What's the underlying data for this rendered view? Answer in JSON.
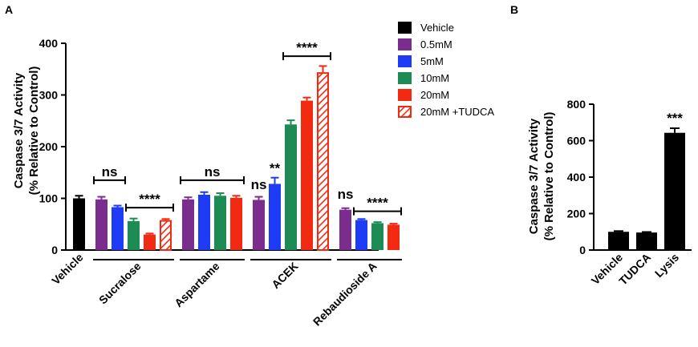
{
  "colors": {
    "Vehicle": "#000000",
    "0.5mM": "#7B2D8E",
    "5mM": "#1E3CF5",
    "10mM": "#1C8C54",
    "20mM": "#F22A12",
    "20mM +TUDCA": "#F22A12",
    "axis": "#000000"
  },
  "chart_data": [
    {
      "panel": "A",
      "type": "bar",
      "ylabel_line1": "Caspase 3/7 Activity",
      "ylabel_line2": "(% Relative to Control)",
      "ylim": [
        0,
        400
      ],
      "yticks": [
        "0",
        "100",
        "200",
        "300",
        "400"
      ],
      "legend": {
        "placement": "top-right",
        "entries": [
          {
            "label": "Vehicle",
            "color_key": "Vehicle",
            "hatched": false
          },
          {
            "label": "0.5mM",
            "color_key": "0.5mM",
            "hatched": false
          },
          {
            "label": "5mM",
            "color_key": "5mM",
            "hatched": false
          },
          {
            "label": "10mM",
            "color_key": "10mM",
            "hatched": false
          },
          {
            "label": "20mM",
            "color_key": "20mM",
            "hatched": false
          },
          {
            "label": "20mM +TUDCA",
            "color_key": "20mM +TUDCA",
            "hatched": true
          }
        ]
      },
      "groups": [
        {
          "label": "Vehicle",
          "bars": [
            {
              "series": "Vehicle",
              "value": 100,
              "error": 5
            }
          ]
        },
        {
          "label": "Sucralose",
          "bars": [
            {
              "series": "0.5mM",
              "value": 98,
              "error": 5
            },
            {
              "series": "5mM",
              "value": 83,
              "error": 3
            },
            {
              "series": "10mM",
              "value": 56,
              "error": 5
            },
            {
              "series": "20mM",
              "value": 30,
              "error": 2
            },
            {
              "series": "20mM +TUDCA",
              "value": 58,
              "error": 2
            }
          ]
        },
        {
          "label": "Aspartame",
          "bars": [
            {
              "series": "0.5mM",
              "value": 98,
              "error": 4
            },
            {
              "series": "5mM",
              "value": 107,
              "error": 5
            },
            {
              "series": "10mM",
              "value": 105,
              "error": 5
            },
            {
              "series": "20mM",
              "value": 101,
              "error": 4
            }
          ]
        },
        {
          "label": "ACEK",
          "bars": [
            {
              "series": "0.5mM",
              "value": 97,
              "error": 6
            },
            {
              "series": "5mM",
              "value": 128,
              "error": 12
            },
            {
              "series": "10mM",
              "value": 243,
              "error": 8
            },
            {
              "series": "20mM",
              "value": 289,
              "error": 6
            },
            {
              "series": "20mM +TUDCA",
              "value": 344,
              "error": 12
            }
          ]
        },
        {
          "label": "Rebaudioside A",
          "bars": [
            {
              "series": "0.5mM",
              "value": 78,
              "error": 3
            },
            {
              "series": "5mM",
              "value": 58,
              "error": 2
            },
            {
              "series": "10mM",
              "value": 52,
              "error": 2
            },
            {
              "series": "20mM",
              "value": 49,
              "error": 2
            }
          ]
        }
      ],
      "annotations": [
        {
          "text": "ns",
          "type": "bracket",
          "group": "Sucralose",
          "from": 0,
          "to": 1,
          "y": 135
        },
        {
          "text": "****",
          "type": "bracket",
          "group": "Sucralose",
          "from": 2,
          "to": 4,
          "y": 82
        },
        {
          "text": "ns",
          "type": "bracket",
          "group": "Aspartame",
          "from": 0,
          "to": 3,
          "y": 135
        },
        {
          "text": "ns",
          "type": "label",
          "group": "ACEK",
          "bar": 0,
          "y": 118
        },
        {
          "text": "**",
          "type": "label",
          "group": "ACEK",
          "bar": 1,
          "y": 150
        },
        {
          "text": "****",
          "type": "bracket",
          "group": "ACEK",
          "from": 2,
          "to": 4,
          "y": 375
        },
        {
          "text": "ns",
          "type": "label",
          "group": "Rebaudioside A",
          "bar": 0,
          "y": 99
        },
        {
          "text": "****",
          "type": "bracket",
          "group": "Rebaudioside A",
          "from": 1,
          "to": 3,
          "y": 75
        }
      ]
    },
    {
      "panel": "B",
      "type": "bar",
      "ylabel_line1": "Caspase 3/7 Activity",
      "ylabel_line2": "(% Relative to Control)",
      "ylim": [
        0,
        800
      ],
      "yticks": [
        "0",
        "200",
        "400",
        "600",
        "800"
      ],
      "categories": [
        "Vehicle",
        "TUDCA",
        "Lysis"
      ],
      "values": [
        100,
        96,
        643
      ],
      "errors": [
        4,
        3,
        25
      ],
      "bar_color_key": "Vehicle",
      "annotations": [
        {
          "text": "***",
          "category": "Lysis",
          "y": 700
        }
      ]
    }
  ]
}
